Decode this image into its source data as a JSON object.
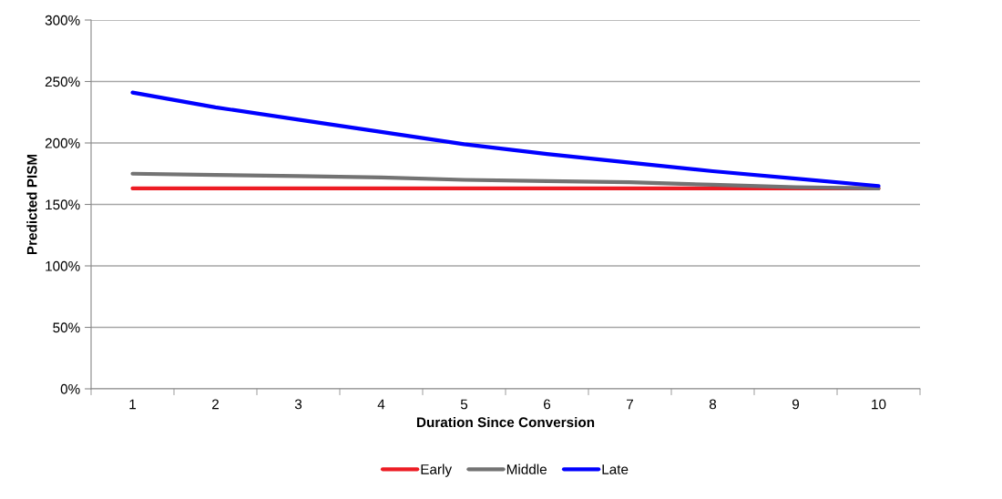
{
  "chart_data": {
    "type": "line",
    "xlabel": "Duration Since Conversion",
    "ylabel": "Predicted PISM",
    "categories": [
      "1",
      "2",
      "3",
      "4",
      "5",
      "6",
      "7",
      "8",
      "9",
      "10"
    ],
    "series": [
      {
        "name": "Early",
        "color": "#ed1c24",
        "values": [
          163,
          163,
          163,
          163,
          163,
          163,
          163,
          163,
          163,
          163
        ]
      },
      {
        "name": "Middle",
        "color": "#737373",
        "values": [
          175,
          174,
          173,
          172,
          170,
          169,
          168,
          166,
          164,
          163
        ]
      },
      {
        "name": "Late",
        "color": "#0000ff",
        "values": [
          241,
          229,
          219,
          209,
          199,
          191,
          184,
          177,
          171,
          165
        ]
      }
    ],
    "ylim": [
      0,
      300
    ],
    "yticks": [
      {
        "value": 0,
        "label": "0%"
      },
      {
        "value": 50,
        "label": "50%"
      },
      {
        "value": 100,
        "label": "100%"
      },
      {
        "value": 150,
        "label": "150%"
      },
      {
        "value": 200,
        "label": "200%"
      },
      {
        "value": 250,
        "label": "250%"
      },
      {
        "value": 300,
        "label": "300%"
      }
    ],
    "grid": "y",
    "legend": "bottom",
    "marker": "none",
    "line_style": "solid"
  }
}
